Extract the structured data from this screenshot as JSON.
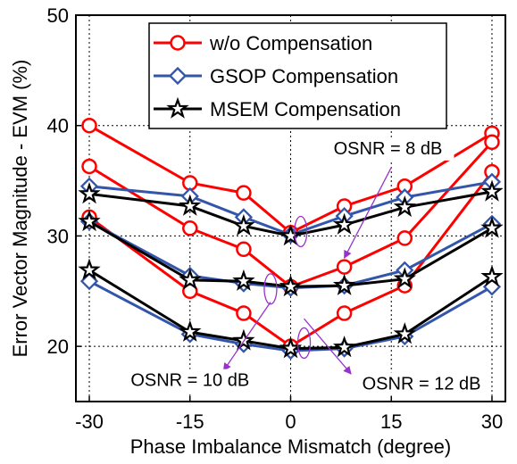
{
  "chart_data": {
    "type": "line",
    "xlabel": "Phase Imbalance Mismatch (degree)",
    "ylabel": "Error Vector Magnitude - EVM (%)",
    "xlim": [
      -32,
      32
    ],
    "ylim": [
      15,
      50
    ],
    "xticks": [
      -30,
      -15,
      0,
      15,
      30
    ],
    "yticks": [
      20,
      30,
      40,
      50
    ],
    "grid": true,
    "legend_position": "top-right",
    "legend": [
      {
        "name": "w/o Compensation",
        "color": "#ff0000",
        "marker": "circle"
      },
      {
        "name": "GSOP Compensation",
        "color": "#3355aa",
        "marker": "diamond"
      },
      {
        "name": "MSEM Compensation",
        "color": "#000000",
        "marker": "star"
      }
    ],
    "x": [
      -30,
      -15,
      -7,
      0,
      8,
      17,
      30
    ],
    "series": [
      {
        "legend": 0,
        "values": [
          40,
          34.8,
          33.9,
          30.3,
          32.7,
          34.5,
          39.3
        ]
      },
      {
        "legend": 0,
        "values": [
          36.3,
          30.7,
          28.8,
          25.4,
          27.2,
          29.8,
          38.5
        ]
      },
      {
        "legend": 0,
        "values": [
          31.7,
          25,
          23,
          20,
          23,
          25.5,
          35.8
        ]
      },
      {
        "legend": 1,
        "values": [
          34.5,
          33.6,
          31.7,
          30.1,
          31.8,
          33.5,
          34.9
        ]
      },
      {
        "legend": 1,
        "values": [
          31.3,
          26.4,
          25.7,
          25.3,
          25.5,
          26.9,
          31.1
        ]
      },
      {
        "legend": 1,
        "values": [
          25.9,
          21.1,
          20.2,
          19.6,
          19.8,
          20.9,
          25.4
        ]
      },
      {
        "legend": 2,
        "values": [
          33.8,
          32.7,
          30.9,
          30,
          31,
          32.6,
          34
        ]
      },
      {
        "legend": 2,
        "values": [
          31.3,
          26,
          25.9,
          25.4,
          25.5,
          26.1,
          30.7
        ]
      },
      {
        "legend": 2,
        "values": [
          26.9,
          21.3,
          20.5,
          19.8,
          19.9,
          21.1,
          26.3
        ]
      }
    ],
    "annotations": [
      {
        "text": "OSNR = 8 dB",
        "x": 14.5,
        "y": 37.4,
        "ellipse": [
          1.5,
          30.4
        ],
        "arrow_from": [
          15,
          36.2
        ],
        "arrow_to": [
          8,
          28
        ]
      },
      {
        "text": "OSNR = 10 dB",
        "x": -15,
        "y": 16.4,
        "ellipse": [
          -3,
          25.2
        ],
        "arrow_from": [
          -3,
          24
        ],
        "arrow_to": [
          -10,
          17.8
        ]
      },
      {
        "text": "OSNR = 12 dB",
        "x": 19.5,
        "y": 16.1,
        "ellipse": [
          2,
          20.3
        ],
        "arrow_from": [
          2,
          22.5
        ],
        "arrow_to": [
          9,
          17.5
        ]
      }
    ]
  }
}
